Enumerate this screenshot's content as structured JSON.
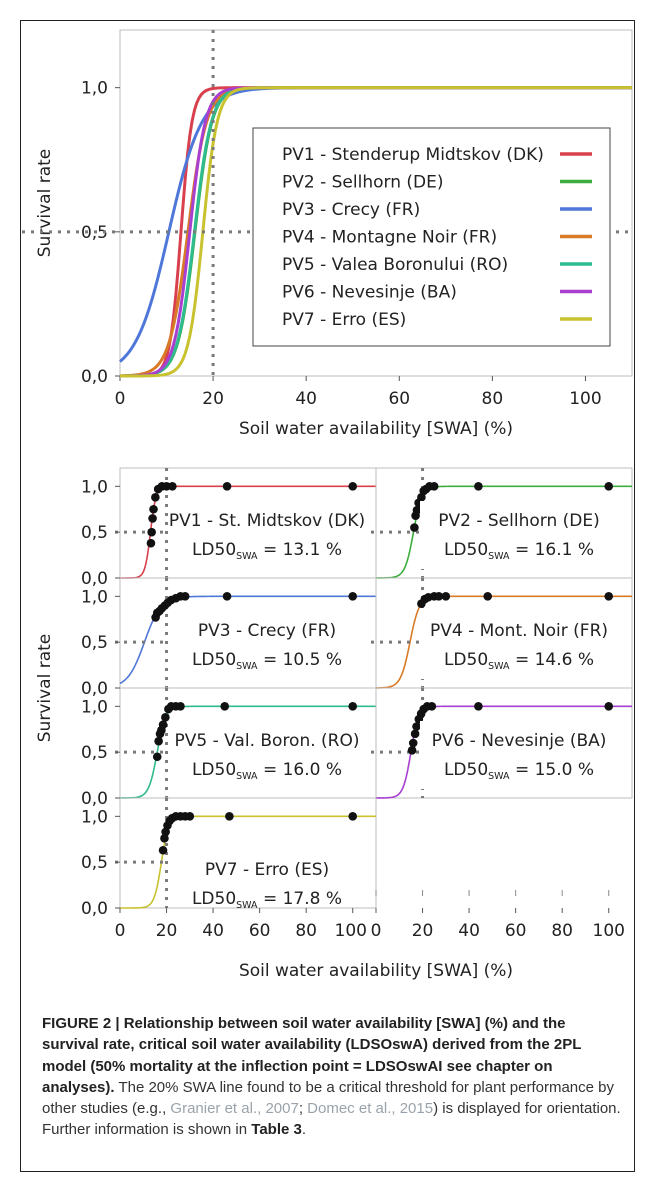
{
  "chart_data": [
    {
      "type": "line",
      "xlabel": "Soil water availability [SWA] (%)",
      "ylabel": "Survival rate",
      "xlim": [
        0,
        110
      ],
      "ylim": [
        0,
        1.2
      ],
      "x_ticks": [
        "0",
        "20",
        "40",
        "60",
        "80",
        "100"
      ],
      "y_ticks": [
        "0,0",
        "0,5",
        "1,0"
      ],
      "reference_lines": {
        "x": 20,
        "y": 0.5
      },
      "legend_position": "center-right",
      "series": [
        {
          "name": "PV1 - Stenderup Midtskov (DK)",
          "color": "#d9404d",
          "ld50": 13.1,
          "slope": 0.85
        },
        {
          "name": "PV2 - Sellhorn (DE)",
          "color": "#3dae3d",
          "ld50": 16.1,
          "slope": 0.55
        },
        {
          "name": "PV3 - Crecy (FR)",
          "color": "#4f77d9",
          "ld50": 10.5,
          "slope": 0.28
        },
        {
          "name": "PV4 - Montagne Noir (FR)",
          "color": "#d97a27",
          "ld50": 14.6,
          "slope": 0.5
        },
        {
          "name": "PV5 - Valea Boronului (RO)",
          "color": "#2dbb8f",
          "ld50": 16.0,
          "slope": 0.55
        },
        {
          "name": "PV6 - Nevesinje (BA)",
          "color": "#a93fd0",
          "ld50": 15.0,
          "slope": 0.6
        },
        {
          "name": "PV7 - Erro (ES)",
          "color": "#c9c22f",
          "ld50": 17.8,
          "slope": 0.65
        }
      ]
    },
    {
      "type": "scatter",
      "xlabel": "Soil water availability [SWA] (%)",
      "ylabel": "Survival rate",
      "xlim": [
        0,
        110
      ],
      "ylim": [
        0,
        1.2
      ],
      "x_ticks": [
        "0",
        "20",
        "40",
        "60",
        "80",
        "100"
      ],
      "y_ticks": [
        "0,0",
        "0,5",
        "1,0"
      ],
      "reference_lines": {
        "x": 20,
        "y": 0.5
      },
      "panels": [
        {
          "label": "PV1 - St. Midtskov (DK)",
          "ld50_label": "LD50",
          "ld50_sub": "SWA",
          "ld50_text": " = 13.1 %",
          "color": "#d9404d",
          "ld50": 13.1,
          "slope": 0.85,
          "points": [
            [
              13.3,
              0.38
            ],
            [
              13.6,
              0.5
            ],
            [
              14.0,
              0.65
            ],
            [
              14.4,
              0.75
            ],
            [
              15.2,
              0.88
            ],
            [
              16.4,
              0.97
            ],
            [
              18.0,
              1.0
            ],
            [
              20.0,
              1.0
            ],
            [
              22.5,
              1.0
            ],
            [
              46,
              1.0
            ],
            [
              100,
              1.0
            ]
          ]
        },
        {
          "label": "PV2 - Sellhorn (DE)",
          "ld50_label": "LD50",
          "ld50_sub": "SWA",
          "ld50_text": " = 16.1 %",
          "color": "#3dae3d",
          "ld50": 16.1,
          "slope": 0.55,
          "points": [
            [
              16.5,
              0.55
            ],
            [
              17.0,
              0.68
            ],
            [
              17.6,
              0.74
            ],
            [
              18.3,
              0.82
            ],
            [
              19.5,
              0.88
            ],
            [
              20.5,
              0.95
            ],
            [
              21.5,
              0.97
            ],
            [
              23.0,
              1.0
            ],
            [
              25.0,
              1.0
            ],
            [
              44,
              1.0
            ],
            [
              100,
              1.0
            ]
          ]
        },
        {
          "label": "PV3 - Crecy (FR)",
          "ld50_label": "LD50",
          "ld50_sub": "SWA",
          "ld50_text": " = 10.5 %",
          "color": "#4f77d9",
          "ld50": 10.5,
          "slope": 0.28,
          "points": [
            [
              15.3,
              0.77
            ],
            [
              16.0,
              0.82
            ],
            [
              17.0,
              0.84
            ],
            [
              18.0,
              0.87
            ],
            [
              19.3,
              0.9
            ],
            [
              20.5,
              0.93
            ],
            [
              22.0,
              0.96
            ],
            [
              24.0,
              0.98
            ],
            [
              26.0,
              1.0
            ],
            [
              28.0,
              1.0
            ],
            [
              46,
              1.0
            ],
            [
              100,
              1.0
            ]
          ]
        },
        {
          "label": "PV4 - Mont. Noir (FR)",
          "ld50_label": "LD50",
          "ld50_sub": "SWA",
          "ld50_text": " = 14.6 %",
          "color": "#d97a27",
          "ld50": 14.6,
          "slope": 0.5,
          "points": [
            [
              19.5,
              0.92
            ],
            [
              21.0,
              0.97
            ],
            [
              22.5,
              0.99
            ],
            [
              25.0,
              1.0
            ],
            [
              27.0,
              1.0
            ],
            [
              30.0,
              1.0
            ],
            [
              48,
              1.0
            ],
            [
              100,
              1.0
            ]
          ]
        },
        {
          "label": "PV5 - Val. Boron. (RO)",
          "ld50_label": "LD50",
          "ld50_sub": "SWA",
          "ld50_text": " = 16.0 %",
          "color": "#2dbb8f",
          "ld50": 16.0,
          "slope": 0.55,
          "points": [
            [
              16.0,
              0.45
            ],
            [
              16.6,
              0.62
            ],
            [
              17.2,
              0.7
            ],
            [
              17.8,
              0.74
            ],
            [
              18.5,
              0.8
            ],
            [
              19.5,
              0.88
            ],
            [
              20.8,
              0.97
            ],
            [
              22.0,
              1.0
            ],
            [
              24.0,
              1.0
            ],
            [
              26.0,
              1.0
            ],
            [
              45,
              1.0
            ],
            [
              100,
              1.0
            ]
          ]
        },
        {
          "label": "PV6 - Nevesinje (BA)",
          "ld50_label": "LD50",
          "ld50_sub": "SWA",
          "ld50_text": " = 15.0 %",
          "color": "#a93fd0",
          "ld50": 15.0,
          "slope": 0.6,
          "points": [
            [
              15.5,
              0.52
            ],
            [
              16.0,
              0.6
            ],
            [
              16.8,
              0.7
            ],
            [
              17.4,
              0.78
            ],
            [
              18.4,
              0.86
            ],
            [
              19.4,
              0.92
            ],
            [
              20.5,
              0.97
            ],
            [
              22.0,
              1.0
            ],
            [
              24.0,
              1.0
            ],
            [
              44,
              1.0
            ],
            [
              100,
              1.0
            ]
          ]
        },
        {
          "label": "PV7 - Erro (ES)",
          "ld50_label": "LD50",
          "ld50_sub": "SWA",
          "ld50_text": " = 17.8 %",
          "color": "#c9c22f",
          "ld50": 17.8,
          "slope": 0.65,
          "points": [
            [
              18.5,
              0.63
            ],
            [
              19.1,
              0.76
            ],
            [
              19.6,
              0.83
            ],
            [
              20.4,
              0.9
            ],
            [
              21.3,
              0.95
            ],
            [
              22.4,
              0.98
            ],
            [
              24.0,
              1.0
            ],
            [
              26.0,
              1.0
            ],
            [
              28.0,
              1.0
            ],
            [
              30.0,
              1.0
            ],
            [
              47,
              1.0
            ],
            [
              100,
              1.0
            ]
          ]
        }
      ]
    }
  ],
  "caption": {
    "figure_label": "FIGURE 2 | Relationship between soil water availability [SWA] (%) and the survival rate, critical soil water availability (LDSOswA) derived from the 2PL model (50% mortality at the inflection point = LDSOswAI see chapter on analyses).",
    "text_1": " The 20% SWA line found to be a critical threshold for plant performance by other studies (e.g., ",
    "ref_1": "Granier et al., 2007",
    "text_2": "; ",
    "ref_2": "Domec et al., 2015",
    "text_3": ") is displayed for orientation. Further information is shown in ",
    "table_ref": "Table 3",
    "text_4": "."
  }
}
